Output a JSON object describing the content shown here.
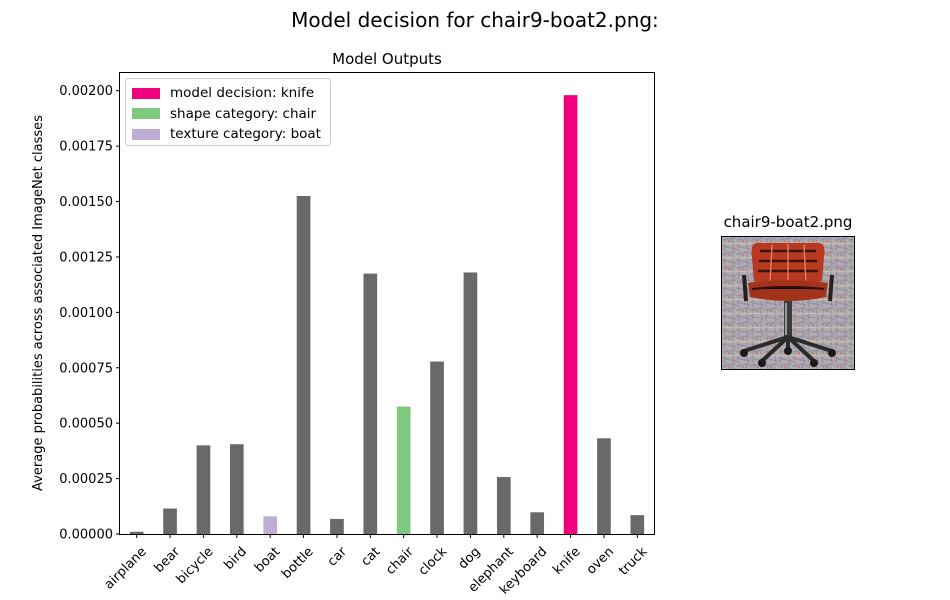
{
  "figure": {
    "suptitle": "Model decision for chair9-boat2.png:",
    "image_title": "chair9-boat2.png",
    "image_icon": "chair-photo-thumbnail"
  },
  "legend": {
    "items": [
      {
        "label": "model decision: knife",
        "color": "#f0027f"
      },
      {
        "label": "shape category: chair",
        "color": "#7fc97f"
      },
      {
        "label": "texture category: boat",
        "color": "#beaed4"
      }
    ]
  },
  "chart_data": {
    "type": "bar",
    "title": "Model Outputs",
    "xlabel": "",
    "ylabel": "Average probabilities across associated ImageNet classes",
    "categories": [
      "airplane",
      "bear",
      "bicycle",
      "bird",
      "boat",
      "bottle",
      "car",
      "cat",
      "chair",
      "clock",
      "dog",
      "elephant",
      "keyboard",
      "knife",
      "oven",
      "truck"
    ],
    "values": [
      1e-05,
      0.000115,
      0.0004,
      0.000405,
      8e-05,
      0.001525,
      6.8e-05,
      0.001175,
      0.000575,
      0.000778,
      0.00118,
      0.000257,
      9.8e-05,
      0.00198,
      0.000432,
      8.5e-05
    ],
    "colors": [
      "#696969",
      "#696969",
      "#696969",
      "#696969",
      "#beaed4",
      "#696969",
      "#696969",
      "#696969",
      "#7fc97f",
      "#696969",
      "#696969",
      "#696969",
      "#696969",
      "#f0027f",
      "#696969",
      "#696969"
    ],
    "yticks": [
      "0.00000",
      "0.00025",
      "0.00050",
      "0.00075",
      "0.00100",
      "0.00125",
      "0.00150",
      "0.00175",
      "0.00200"
    ],
    "ylim": [
      0,
      0.00208
    ],
    "grid": false,
    "legend_position": "top-left"
  }
}
